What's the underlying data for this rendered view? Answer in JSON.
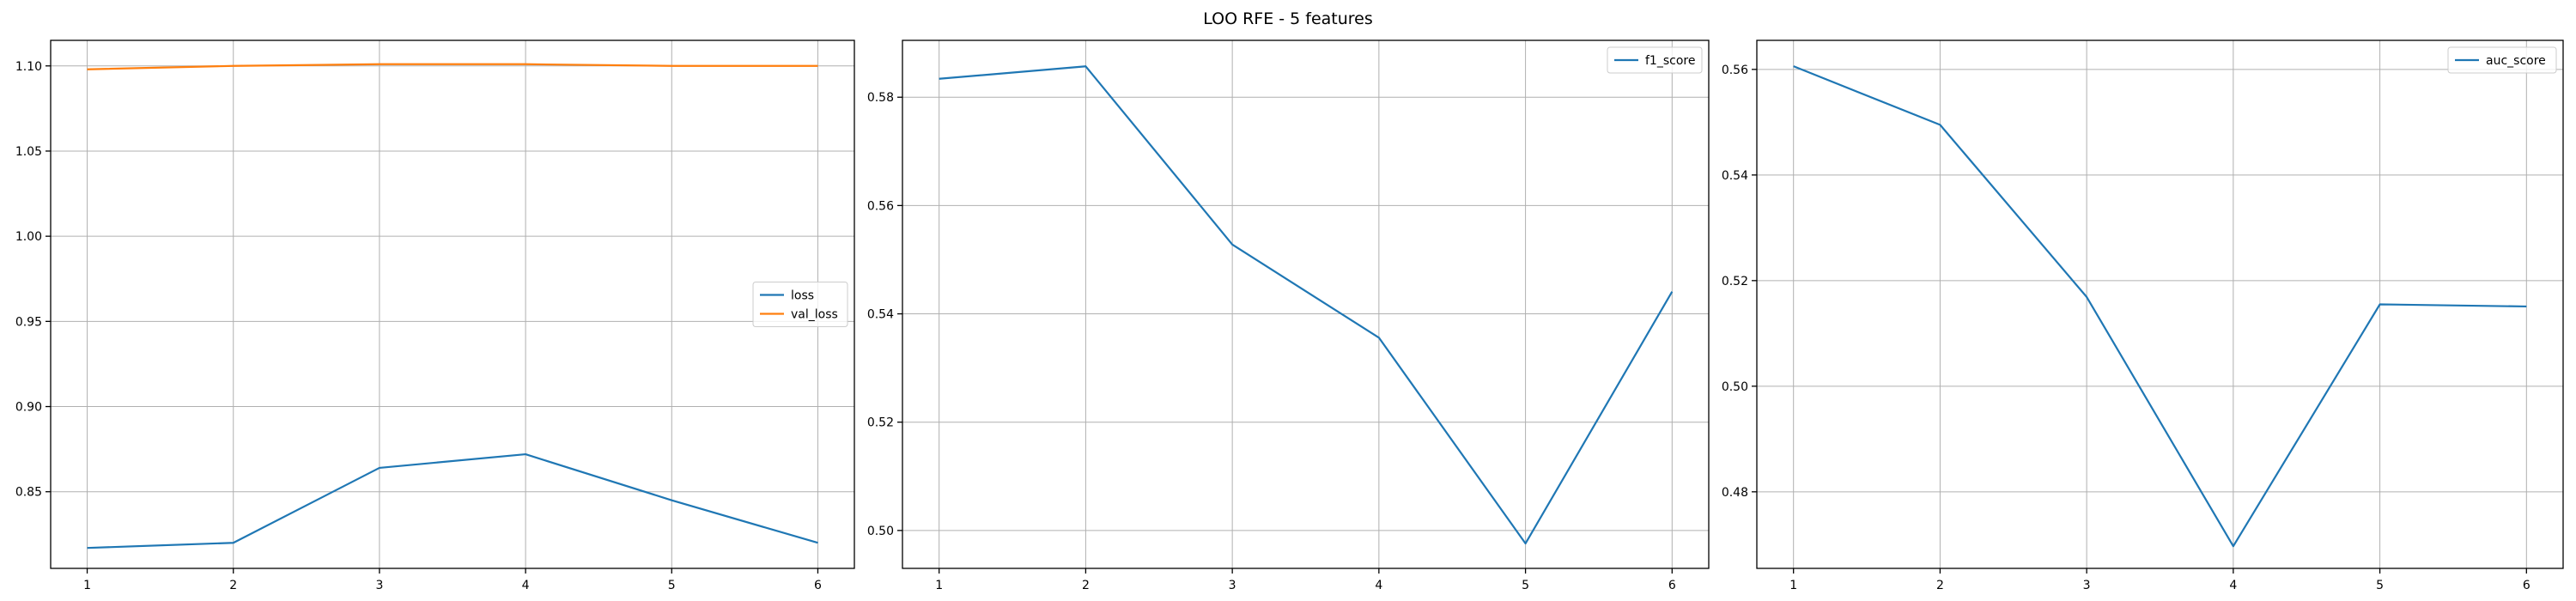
{
  "figure": {
    "suptitle": "LOO RFE - 5 features"
  },
  "colors": {
    "series_blue": "#1f77b4",
    "series_orange": "#ff7f0e",
    "grid": "#b0b0b0"
  },
  "chart_data": [
    {
      "type": "line",
      "title": "",
      "xlabel": "",
      "ylabel": "",
      "x": [
        1,
        2,
        3,
        4,
        5,
        6
      ],
      "xlim": [
        0.75,
        6.25
      ],
      "ylim": [
        0.805,
        1.115
      ],
      "xticks": [
        1,
        2,
        3,
        4,
        5,
        6
      ],
      "yticks": [
        0.85,
        0.9,
        0.95,
        1.0,
        1.05,
        1.1
      ],
      "ytick_labels": [
        "0.85",
        "0.90",
        "0.95",
        "1.00",
        "1.05",
        "1.10"
      ],
      "grid": true,
      "legend": "center-right",
      "series": [
        {
          "name": "loss",
          "color": "#1f77b4",
          "values": [
            0.817,
            0.82,
            0.864,
            0.872,
            0.845,
            0.82
          ]
        },
        {
          "name": "val_loss",
          "color": "#ff7f0e",
          "values": [
            1.098,
            1.1,
            1.101,
            1.101,
            1.1,
            1.1
          ]
        }
      ]
    },
    {
      "type": "line",
      "title": "",
      "xlabel": "",
      "ylabel": "",
      "x": [
        1,
        2,
        3,
        4,
        5,
        6
      ],
      "xlim": [
        0.75,
        6.25
      ],
      "ylim": [
        0.493,
        0.5905
      ],
      "xticks": [
        1,
        2,
        3,
        4,
        5,
        6
      ],
      "yticks": [
        0.5,
        0.52,
        0.54,
        0.56,
        0.58
      ],
      "ytick_labels": [
        "0.50",
        "0.52",
        "0.54",
        "0.56",
        "0.58"
      ],
      "grid": true,
      "legend": "top-right",
      "series": [
        {
          "name": "f1_score",
          "color": "#1f77b4",
          "values": [
            0.5834,
            0.5857,
            0.5528,
            0.5356,
            0.4976,
            0.5441
          ]
        }
      ]
    },
    {
      "type": "line",
      "title": "",
      "xlabel": "",
      "ylabel": "",
      "x": [
        1,
        2,
        3,
        4,
        5,
        6
      ],
      "xlim": [
        0.75,
        6.25
      ],
      "ylim": [
        0.4655,
        0.5655
      ],
      "xticks": [
        1,
        2,
        3,
        4,
        5,
        6
      ],
      "yticks": [
        0.48,
        0.5,
        0.52,
        0.54,
        0.56
      ],
      "ytick_labels": [
        "0.48",
        "0.50",
        "0.52",
        "0.54",
        "0.56"
      ],
      "grid": true,
      "legend": "top-right",
      "series": [
        {
          "name": "auc_score",
          "color": "#1f77b4",
          "values": [
            0.5606,
            0.5495,
            0.5169,
            0.4697,
            0.5155,
            0.5151
          ]
        }
      ]
    }
  ]
}
